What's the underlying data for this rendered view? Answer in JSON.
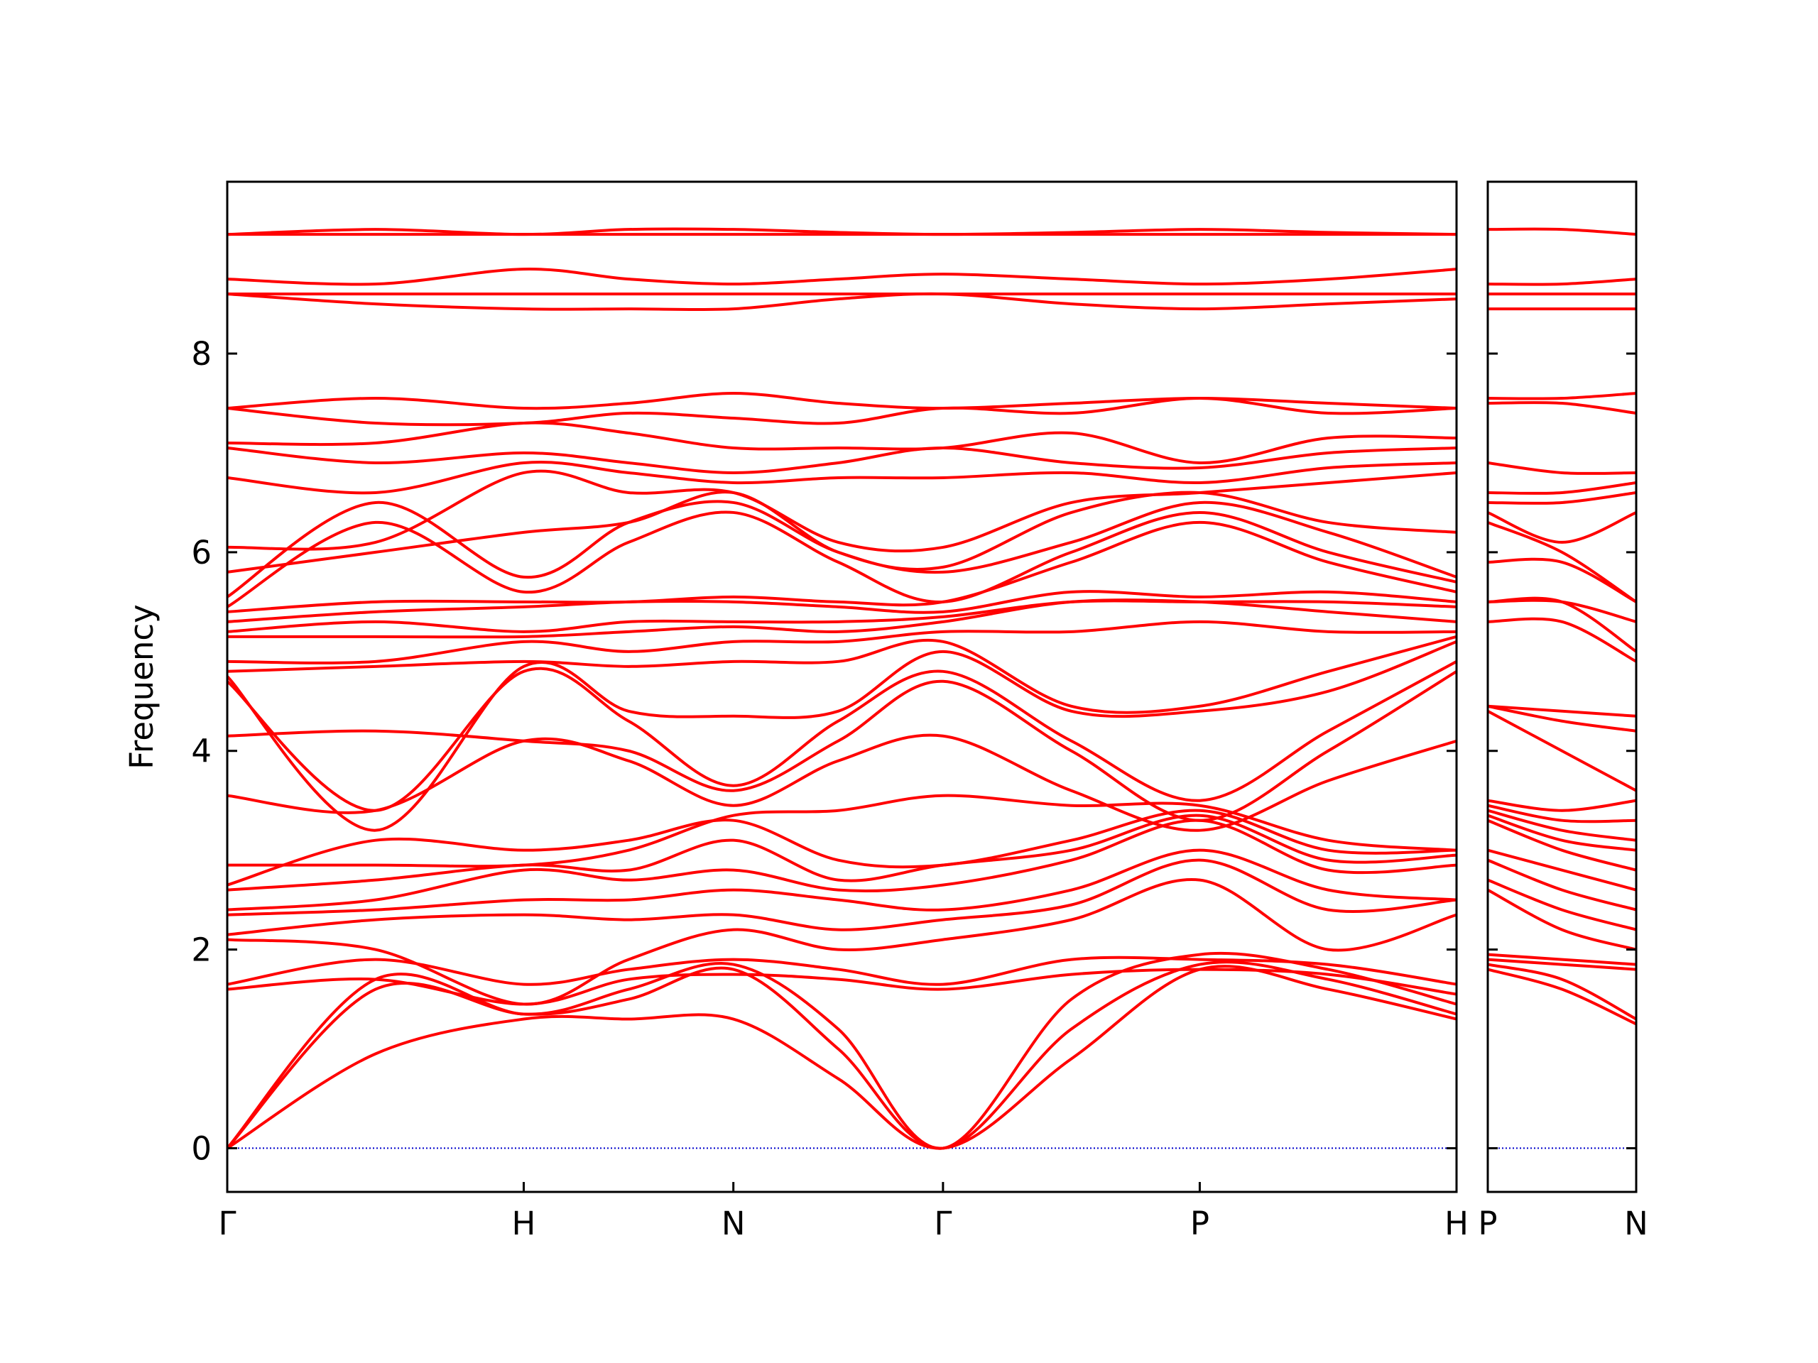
{
  "chart_data": [
    {
      "type": "line",
      "ylabel": "Frequency",
      "color": "#ff0000",
      "zero_line_color": "#0000cc",
      "ytick_labels": true,
      "xlim": [
        0,
        4.1463
      ],
      "ylim": [
        -0.44,
        9.73
      ],
      "yticks": [
        0,
        2,
        4,
        6,
        8
      ],
      "xticks": [
        {
          "value": 0,
          "label": "Γ"
        },
        {
          "value": 1,
          "label": "H"
        },
        {
          "value": 1.7071,
          "label": "N"
        },
        {
          "value": 2.4142,
          "label": "Γ"
        },
        {
          "value": 3.2802,
          "label": "P"
        },
        {
          "value": 4.1463,
          "label": "H"
        }
      ],
      "x": [
        0,
        0.5,
        1,
        1.3536,
        1.7071,
        2.0607,
        2.4142,
        2.8472,
        3.2802,
        3.7133,
        4.1463
      ],
      "series": [
        {
          "values": [
            0,
            0.95,
            1.3,
            1.3,
            1.3,
            0.7,
            0,
            0.9,
            1.8,
            1.6,
            1.3
          ]
        },
        {
          "values": [
            0,
            1.6,
            1.35,
            1.5,
            1.8,
            1.0,
            0,
            1.2,
            1.85,
            1.7,
            1.35
          ]
        },
        {
          "values": [
            0,
            1.7,
            1.35,
            1.6,
            1.85,
            1.2,
            0,
            1.5,
            1.95,
            1.8,
            1.45
          ]
        },
        {
          "values": [
            1.6,
            1.7,
            1.45,
            1.7,
            1.75,
            1.7,
            1.6,
            1.75,
            1.8,
            1.75,
            1.55
          ]
        },
        {
          "values": [
            1.65,
            1.9,
            1.65,
            1.8,
            1.9,
            1.8,
            1.65,
            1.9,
            1.9,
            1.85,
            1.65
          ]
        },
        {
          "values": [
            2.1,
            2.0,
            1.45,
            1.9,
            2.2,
            2.0,
            2.1,
            2.3,
            2.7,
            2.0,
            2.35
          ]
        },
        {
          "values": [
            2.15,
            2.3,
            2.35,
            2.3,
            2.35,
            2.2,
            2.3,
            2.45,
            2.9,
            2.4,
            2.5
          ]
        },
        {
          "values": [
            2.35,
            2.4,
            2.5,
            2.5,
            2.6,
            2.5,
            2.4,
            2.6,
            3.0,
            2.6,
            2.5
          ]
        },
        {
          "values": [
            2.4,
            2.5,
            2.8,
            2.7,
            2.8,
            2.6,
            2.65,
            2.9,
            3.3,
            2.8,
            2.85
          ]
        },
        {
          "values": [
            2.6,
            2.7,
            2.85,
            2.8,
            3.1,
            2.7,
            2.85,
            3.0,
            3.35,
            2.9,
            2.95
          ]
        },
        {
          "values": [
            2.65,
            3.1,
            3.0,
            3.1,
            3.3,
            2.9,
            2.85,
            3.1,
            3.4,
            3.0,
            3.0
          ]
        },
        {
          "values": [
            2.85,
            2.85,
            2.85,
            3.0,
            3.35,
            3.4,
            3.55,
            3.45,
            3.45,
            3.1,
            3.0
          ]
        },
        {
          "values": [
            3.55,
            3.4,
            4.1,
            3.9,
            3.45,
            3.9,
            4.15,
            3.6,
            3.2,
            3.7,
            4.1
          ]
        },
        {
          "values": [
            4.15,
            4.2,
            4.1,
            4.0,
            3.6,
            4.1,
            4.7,
            4.0,
            3.3,
            4.0,
            4.8
          ]
        },
        {
          "values": [
            4.7,
            3.4,
            4.8,
            4.3,
            3.65,
            4.3,
            4.8,
            4.1,
            3.5,
            4.2,
            4.9
          ]
        },
        {
          "values": [
            4.75,
            3.2,
            4.85,
            4.4,
            4.35,
            4.4,
            5.0,
            4.4,
            4.4,
            4.6,
            5.1
          ]
        },
        {
          "values": [
            4.8,
            4.85,
            4.9,
            4.85,
            4.9,
            4.9,
            5.1,
            4.45,
            4.45,
            4.8,
            5.15
          ]
        },
        {
          "values": [
            4.9,
            4.9,
            5.1,
            5.0,
            5.1,
            5.1,
            5.2,
            5.2,
            5.3,
            5.2,
            5.2
          ]
        },
        {
          "values": [
            5.15,
            5.15,
            5.15,
            5.2,
            5.25,
            5.2,
            5.3,
            5.5,
            5.5,
            5.4,
            5.3
          ]
        },
        {
          "values": [
            5.2,
            5.3,
            5.2,
            5.3,
            5.3,
            5.3,
            5.35,
            5.5,
            5.5,
            5.5,
            5.45
          ]
        },
        {
          "values": [
            5.3,
            5.4,
            5.45,
            5.5,
            5.5,
            5.45,
            5.4,
            5.6,
            5.55,
            5.6,
            5.5
          ]
        },
        {
          "values": [
            5.4,
            5.5,
            5.5,
            5.5,
            5.55,
            5.5,
            5.5,
            5.9,
            6.3,
            5.9,
            5.6
          ]
        },
        {
          "values": [
            5.45,
            6.3,
            5.6,
            6.1,
            6.4,
            5.9,
            5.5,
            6.0,
            6.4,
            6.0,
            5.7
          ]
        },
        {
          "values": [
            5.55,
            6.5,
            5.75,
            6.3,
            6.5,
            6.0,
            5.8,
            6.1,
            6.5,
            6.2,
            5.75
          ]
        },
        {
          "values": [
            5.8,
            6.0,
            6.2,
            6.3,
            6.6,
            6.0,
            5.85,
            6.4,
            6.6,
            6.3,
            6.2
          ]
        },
        {
          "values": [
            6.05,
            6.1,
            6.8,
            6.6,
            6.6,
            6.1,
            6.05,
            6.5,
            6.6,
            6.7,
            6.8
          ]
        },
        {
          "values": [
            6.75,
            6.6,
            6.9,
            6.8,
            6.7,
            6.75,
            6.75,
            6.8,
            6.7,
            6.85,
            6.9
          ]
        },
        {
          "values": [
            7.05,
            6.9,
            7.0,
            6.9,
            6.8,
            6.9,
            7.05,
            6.9,
            6.85,
            7.0,
            7.05
          ]
        },
        {
          "values": [
            7.1,
            7.1,
            7.3,
            7.2,
            7.05,
            7.05,
            7.05,
            7.2,
            6.9,
            7.15,
            7.15
          ]
        },
        {
          "values": [
            7.45,
            7.3,
            7.3,
            7.4,
            7.35,
            7.3,
            7.45,
            7.4,
            7.55,
            7.4,
            7.45
          ]
        },
        {
          "values": [
            7.45,
            7.55,
            7.45,
            7.5,
            7.6,
            7.5,
            7.45,
            7.5,
            7.55,
            7.5,
            7.45
          ]
        },
        {
          "values": [
            8.6,
            8.5,
            8.45,
            8.45,
            8.45,
            8.55,
            8.6,
            8.5,
            8.45,
            8.5,
            8.55
          ]
        },
        {
          "values": [
            8.6,
            8.6,
            8.6,
            8.6,
            8.6,
            8.6,
            8.6,
            8.6,
            8.6,
            8.6,
            8.6
          ]
        },
        {
          "values": [
            8.75,
            8.7,
            8.85,
            8.75,
            8.7,
            8.75,
            8.8,
            8.75,
            8.7,
            8.75,
            8.85
          ]
        },
        {
          "values": [
            9.2,
            9.25,
            9.2,
            9.25,
            9.25,
            9.22,
            9.2,
            9.22,
            9.25,
            9.22,
            9.2
          ]
        },
        {
          "values": [
            9.2,
            9.2,
            9.2,
            9.2,
            9.2,
            9.2,
            9.2,
            9.2,
            9.2,
            9.2,
            9.2
          ]
        }
      ]
    },
    {
      "type": "line",
      "color": "#ff0000",
      "zero_line_color": "#0000cc",
      "ytick_labels": false,
      "xlim": [
        0,
        0.5
      ],
      "ylim": [
        -0.44,
        9.73
      ],
      "yticks": [
        0,
        2,
        4,
        6,
        8
      ],
      "xticks": [
        {
          "value": 0,
          "label": "P"
        },
        {
          "value": 0.5,
          "label": "N"
        }
      ],
      "x": [
        0,
        0.25,
        0.5
      ],
      "series": [
        {
          "values": [
            1.8,
            1.6,
            1.25
          ]
        },
        {
          "values": [
            1.85,
            1.7,
            1.3
          ]
        },
        {
          "values": [
            1.9,
            1.85,
            1.8
          ]
        },
        {
          "values": [
            1.95,
            1.9,
            1.85
          ]
        },
        {
          "values": [
            2.6,
            2.2,
            2.0
          ]
        },
        {
          "values": [
            2.7,
            2.4,
            2.2
          ]
        },
        {
          "values": [
            2.9,
            2.6,
            2.4
          ]
        },
        {
          "values": [
            3.0,
            2.8,
            2.6
          ]
        },
        {
          "values": [
            3.3,
            3.0,
            2.8
          ]
        },
        {
          "values": [
            3.35,
            3.1,
            3.0
          ]
        },
        {
          "values": [
            3.4,
            3.2,
            3.1
          ]
        },
        {
          "values": [
            3.45,
            3.3,
            3.3
          ]
        },
        {
          "values": [
            3.5,
            3.4,
            3.5
          ]
        },
        {
          "values": [
            4.4,
            4.0,
            3.6
          ]
        },
        {
          "values": [
            4.45,
            4.3,
            4.2
          ]
        },
        {
          "values": [
            4.45,
            4.4,
            4.35
          ]
        },
        {
          "values": [
            5.3,
            5.3,
            4.9
          ]
        },
        {
          "values": [
            5.5,
            5.5,
            5.0
          ]
        },
        {
          "values": [
            5.5,
            5.5,
            5.3
          ]
        },
        {
          "values": [
            5.9,
            5.9,
            5.5
          ]
        },
        {
          "values": [
            6.3,
            6.0,
            5.5
          ]
        },
        {
          "values": [
            6.4,
            6.1,
            6.4
          ]
        },
        {
          "values": [
            6.5,
            6.5,
            6.6
          ]
        },
        {
          "values": [
            6.6,
            6.6,
            6.7
          ]
        },
        {
          "values": [
            6.9,
            6.8,
            6.8
          ]
        },
        {
          "values": [
            7.5,
            7.5,
            7.4
          ]
        },
        {
          "values": [
            7.55,
            7.55,
            7.6
          ]
        },
        {
          "values": [
            8.45,
            8.45,
            8.45
          ]
        },
        {
          "values": [
            8.6,
            8.6,
            8.6
          ]
        },
        {
          "values": [
            8.7,
            8.7,
            8.75
          ]
        },
        {
          "values": [
            9.25,
            9.25,
            9.2
          ]
        }
      ]
    }
  ]
}
